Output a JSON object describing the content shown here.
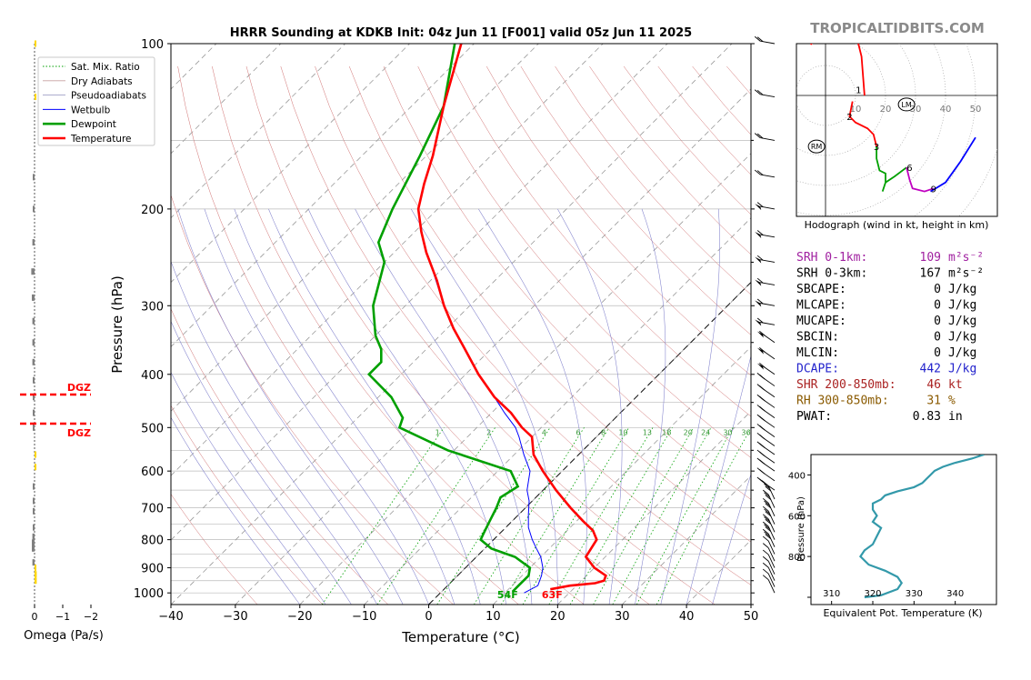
{
  "title": "HRRR Sounding at KDKB Init: 04z Jun 11 [F001] valid 05z Jun 11 2025",
  "brand": "TROPICALTIDBITS.COM",
  "colors": {
    "temperature": "#ff0000",
    "dewpoint": "#00a000",
    "wetbulb": "#0000ff",
    "dry_adiabat": "#d07070",
    "pseudoadiabat": "#8080cc",
    "mixing_ratio": "#00a000",
    "hodo_0_1": "#ff0000",
    "hodo_1_3": "#ff0000",
    "hodo_3_6": "#00a000",
    "hodo_6_9": "#c000c0",
    "hodo_9_12": "#0000ff",
    "theta_e": "#3399aa",
    "omega_down": "#ffd700",
    "omega_up": "#808080",
    "dgz": "#ff0000"
  },
  "skewt": {
    "xlabel": "Temperature (°C)",
    "ylabel": "Pressure (hPa)",
    "xticks": [
      "−40",
      "−30",
      "−20",
      "−10",
      "0",
      "10",
      "20",
      "30",
      "40",
      "50"
    ],
    "yticks": [
      "100",
      "200",
      "300",
      "400",
      "500",
      "600",
      "700",
      "800",
      "900",
      "1000"
    ],
    "legend": [
      "Sat. Mix. Ratio",
      "Dry Adiabats",
      "Pseudoadiabats",
      "Wetbulb",
      "Dewpoint",
      "Temperature"
    ],
    "mixing_ratio_labels": [
      "1",
      "2",
      "4",
      "6",
      "8",
      "10",
      "13",
      "16",
      "20",
      "24",
      "30",
      "36"
    ],
    "surface_dewpoint_label": "54F",
    "surface_temp_label": "63F"
  },
  "omega": {
    "xlabel": "Omega (Pa/s)",
    "xticks": [
      "0",
      "−1",
      "−2"
    ],
    "dgz_label_top": "DGZ",
    "dgz_label_bottom": "DGZ"
  },
  "hodograph": {
    "caption": "Hodograph (wind in kt, height in km)",
    "ring_labels": [
      "10",
      "20",
      "30",
      "40",
      "50"
    ],
    "height_labels": [
      "1",
      "2",
      "3",
      "6",
      "9"
    ],
    "lm_label": "LM",
    "rm_label": "RM"
  },
  "indices": [
    {
      "label": "SRH 0-1km:",
      "value": "109",
      "unit": "m²s⁻²",
      "color": "#a020a0"
    },
    {
      "label": "SRH 0-3km:",
      "value": "167",
      "unit": "m²s⁻²",
      "color": "#000000"
    },
    {
      "label": "SBCAPE:",
      "value": "0",
      "unit": "J/kg",
      "color": "#000000"
    },
    {
      "label": "MLCAPE:",
      "value": "0",
      "unit": "J/kg",
      "color": "#000000"
    },
    {
      "label": "MUCAPE:",
      "value": "0",
      "unit": "J/kg",
      "color": "#000000"
    },
    {
      "label": "SBCIN:",
      "value": "0",
      "unit": "J/kg",
      "color": "#000000"
    },
    {
      "label": "MLCIN:",
      "value": "0",
      "unit": "J/kg",
      "color": "#000000"
    },
    {
      "label": "DCAPE:",
      "value": "442",
      "unit": "J/kg",
      "color": "#2222cc"
    },
    {
      "label": "SHR 200-850mb:",
      "value": "46",
      "unit": "kt",
      "color": "#aa2222"
    },
    {
      "label": "RH 300-850mb:",
      "value": "31",
      "unit": "%",
      "color": "#8a5a00"
    },
    {
      "label": "PWAT:",
      "value": "0.83",
      "unit": "in",
      "color": "#000000"
    }
  ],
  "theta_e_panel": {
    "xlabel": "Equivalent Pot. Temperature (K)",
    "ylabel": "Pressure (hPa)",
    "xticks": [
      "310",
      "320",
      "330",
      "340"
    ],
    "yticks": [
      "400",
      "600",
      "800"
    ]
  },
  "chart_data": [
    {
      "type": "line",
      "title": "HRRR Sounding at KDKB Init: 04z Jun 11 [F001] valid 05z Jun 11 2025",
      "xlabel": "Temperature (°C)",
      "ylabel": "Pressure (hPa)",
      "xlim": [
        -40,
        50
      ],
      "ylim": [
        1050,
        100
      ],
      "yscale": "log",
      "skew": true,
      "series": [
        {
          "name": "Temperature",
          "pressure": [
            985,
            970,
            960,
            950,
            930,
            900,
            860,
            830,
            800,
            770,
            740,
            700,
            650,
            600,
            560,
            520,
            500,
            470,
            440,
            400,
            360,
            330,
            300,
            270,
            240,
            220,
            200,
            180,
            160,
            130,
            100
          ],
          "values": [
            16.5,
            19,
            22.5,
            23.5,
            23,
            20,
            17,
            16.5,
            16,
            14,
            11,
            7,
            2,
            -3,
            -7,
            -10,
            -13,
            -17,
            -22,
            -28,
            -34,
            -39,
            -44,
            -49,
            -55,
            -59,
            -63,
            -66,
            -69,
            -75,
            -82
          ]
        },
        {
          "name": "Dewpoint",
          "pressure": [
            995,
            970,
            930,
            900,
            860,
            830,
            800,
            780,
            740,
            700,
            670,
            640,
            600,
            550,
            500,
            480,
            440,
            400,
            380,
            360,
            340,
            300,
            250,
            230,
            200,
            160,
            130,
            100
          ],
          "values": [
            11,
            11,
            11,
            10,
            6,
            1,
            -2,
            -2.5,
            -3.5,
            -4.5,
            -5.5,
            -4.5,
            -8,
            -21,
            -32,
            -33,
            -38,
            -45,
            -45,
            -47,
            -50,
            -55,
            -60,
            -64,
            -67,
            -71,
            -75,
            -83
          ]
        },
        {
          "name": "Wetbulb",
          "pressure": [
            1000,
            970,
            930,
            900,
            860,
            830,
            800,
            760,
            720,
            680,
            650,
            600,
            560,
            520,
            500,
            470,
            440,
            400,
            360,
            330,
            300,
            260,
            230,
            200
          ],
          "values": [
            13,
            14,
            13,
            12,
            10,
            8,
            6,
            3.5,
            1.5,
            -0.5,
            -2.5,
            -5,
            -8.5,
            -12,
            -14,
            -18,
            -22,
            -28,
            -34,
            -39,
            -44,
            -51,
            -57,
            -63
          ]
        }
      ]
    },
    {
      "type": "line",
      "title": "Hodograph (wind in kt, height in km)",
      "xlabel": "u (kt)",
      "ylabel": "v (kt)",
      "series": [
        {
          "name": "0-1 km",
          "u": [
            -5,
            0,
            5,
            8,
            10,
            11,
            12,
            13
          ],
          "v": [
            17,
            21,
            23,
            22,
            20,
            17,
            13,
            0
          ]
        },
        {
          "name": "1-3 km",
          "u": [
            9,
            8,
            10,
            14,
            16,
            17
          ],
          "v": [
            -2,
            -7,
            -9,
            -11,
            -13,
            -17
          ]
        },
        {
          "name": "3-6 km",
          "u": [
            17,
            17,
            18,
            20,
            20,
            19,
            20,
            23,
            27
          ],
          "v": [
            -17,
            -21,
            -25,
            -26,
            -29,
            -32,
            -29,
            -27,
            -24
          ]
        },
        {
          "name": "6-9 km",
          "u": [
            27,
            28,
            29,
            33,
            36
          ],
          "v": [
            -24,
            -28,
            -31,
            -32,
            -31
          ]
        },
        {
          "name": "9-12 km",
          "u": [
            35,
            40,
            45,
            50
          ],
          "v": [
            -32,
            -29,
            -22,
            -14
          ]
        }
      ],
      "points": [
        {
          "name": "LM",
          "u": 27,
          "v": -3
        },
        {
          "name": "RM",
          "u": -3,
          "v": -17
        }
      ]
    },
    {
      "type": "line",
      "title": "",
      "xlabel": "Equivalent Pot. Temperature (K)",
      "ylabel": "Pressure (hPa)",
      "xlim": [
        305,
        350
      ],
      "ylim": [
        1000,
        300
      ],
      "series": [
        {
          "name": "Theta-e",
          "pressure": [
            1000,
            990,
            960,
            930,
            900,
            870,
            840,
            800,
            770,
            740,
            700,
            660,
            630,
            600,
            570,
            540,
            520,
            500,
            480,
            460,
            440,
            420,
            400,
            380,
            360,
            340,
            320,
            300
          ],
          "values": [
            318,
            322,
            326,
            327,
            326,
            323,
            319,
            317,
            318,
            320,
            321,
            322,
            320,
            321,
            320,
            320,
            322,
            323,
            326,
            330,
            332,
            333,
            334,
            335,
            337,
            340,
            344,
            347
          ]
        }
      ]
    },
    {
      "type": "bar",
      "title": "",
      "xlabel": "Omega (Pa/s)",
      "ylabel": "Pressure (hPa)",
      "xlim": [
        0.1,
        -2.4
      ],
      "pressure": [
        100,
        125,
        175,
        200,
        230,
        260,
        290,
        320,
        350,
        380,
        410,
        440,
        470,
        500,
        560,
        590,
        640,
        680,
        710,
        760,
        790,
        810,
        830,
        880,
        900,
        925,
        950
      ],
      "values": [
        0.02,
        0.03,
        -0.05,
        -0.05,
        -0.08,
        -0.12,
        -0.1,
        -0.08,
        -0.08,
        -0.08,
        -0.06,
        -0.06,
        -0.04,
        -0.02,
        0.02,
        0.03,
        -0.02,
        -0.02,
        -0.03,
        -0.05,
        -0.08,
        -0.1,
        -0.1,
        -0.08,
        0.05,
        0.08,
        0.08
      ],
      "dgz_pressure": [
        435,
        490
      ]
    }
  ]
}
